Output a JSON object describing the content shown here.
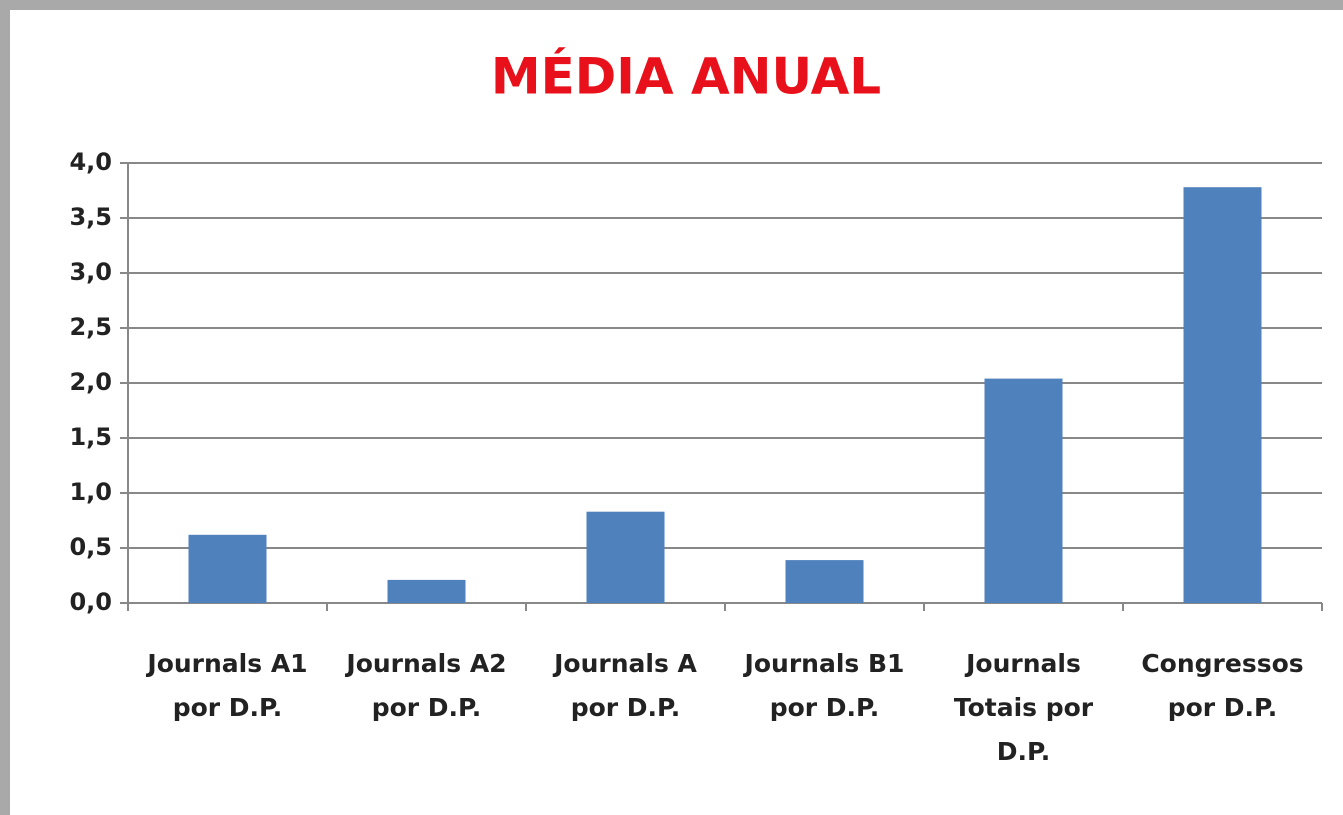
{
  "chart_data": {
    "type": "bar",
    "title": "MÉDIA ANUAL",
    "categories": [
      "Journals A1 por D.P.",
      "Journals A2 por D.P.",
      "Journals A por D.P.",
      "Journals B1 por D.P.",
      "Journals Totais por D.P.",
      "Congressos por D.P."
    ],
    "values": [
      0.62,
      0.21,
      0.83,
      0.39,
      2.04,
      3.78
    ],
    "color": "#4f81bd",
    "ylim": [
      0,
      4
    ],
    "yticks": [
      {
        "value": 0,
        "label": "0,0"
      },
      {
        "value": 0.5,
        "label": "0,5"
      },
      {
        "value": 1,
        "label": "1,0"
      },
      {
        "value": 1.5,
        "label": "1,5"
      },
      {
        "value": 2,
        "label": "2,0"
      },
      {
        "value": 2.5,
        "label": "2,5"
      },
      {
        "value": 3,
        "label": "3,0"
      },
      {
        "value": 3.5,
        "label": "3,5"
      },
      {
        "value": 4,
        "label": "4,0"
      }
    ],
    "grid": true
  }
}
